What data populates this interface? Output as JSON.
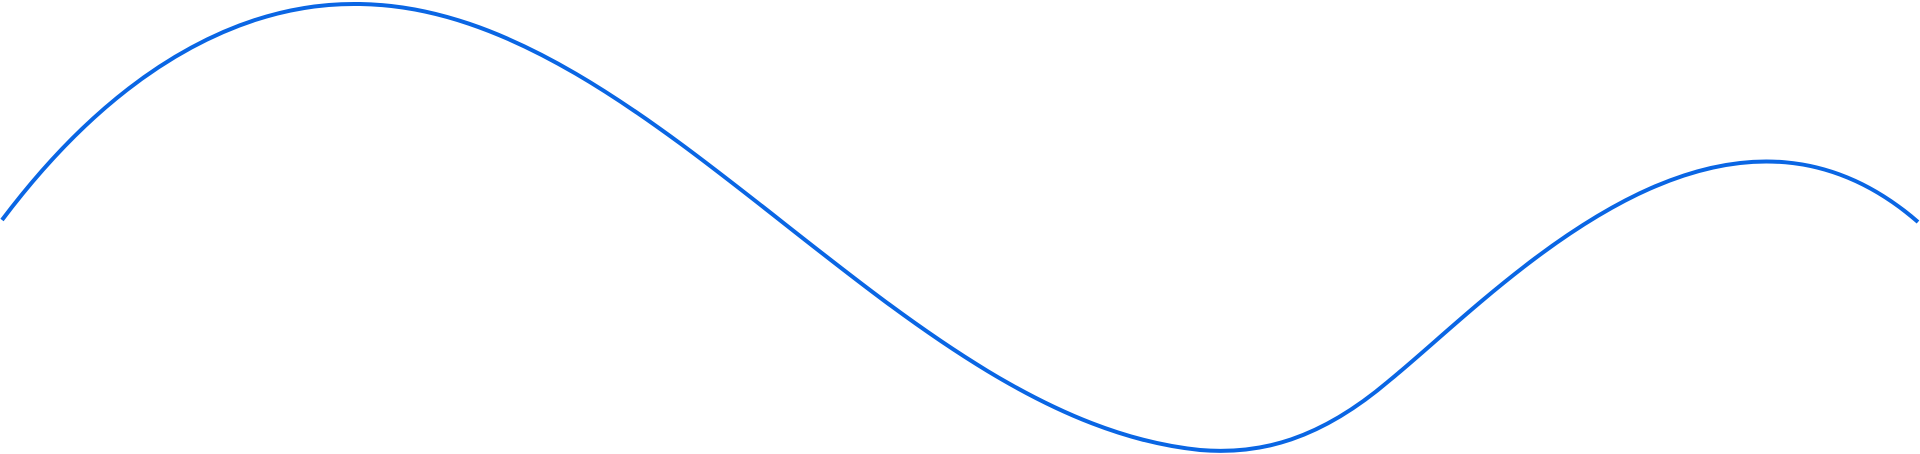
{
  "graphic": {
    "description_name": "decorative-wave-line",
    "stroke_color": "#0A66E4",
    "background_color": "#FFFFFF"
  }
}
